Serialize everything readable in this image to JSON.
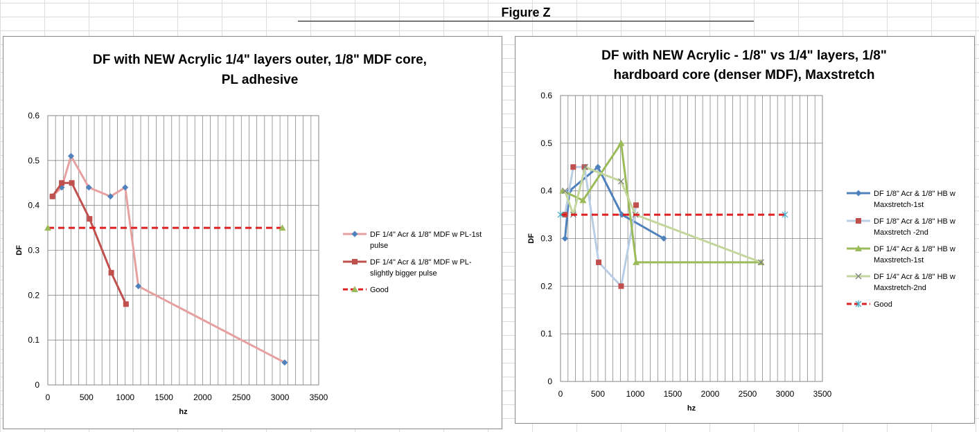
{
  "figure_title": "Figure Z",
  "colors": {
    "blue": "#4f81bd",
    "red": "#c0504d",
    "green": "#9bbb59",
    "pink": "#e6a0a0",
    "darkred": "#c0504d",
    "lightblue": "#b9cde5",
    "lightgreen": "#c3d69b",
    "good": "#e02020",
    "grid": "#868686"
  },
  "chart_data": [
    {
      "type": "scatter",
      "title": "DF with NEW Acrylic  1/4\" layers outer, 1/8\" MDF core, PL adhesive",
      "title_lines": [
        "DF with NEW Acrylic  1/4\" layers outer, 1/8\" MDF core,",
        "PL adhesive"
      ],
      "xlabel": "hz",
      "ylabel": "DF",
      "xlim": [
        0,
        3500
      ],
      "ylim": [
        0,
        0.6
      ],
      "x_ticks": [
        0,
        500,
        1000,
        1500,
        2000,
        2500,
        3000,
        3500
      ],
      "y_ticks": [
        0,
        0.1,
        0.2,
        0.3,
        0.4,
        0.5,
        0.6
      ],
      "y_tick_labels": [
        "0",
        "0.1",
        "0.2",
        "0.3",
        "0.4",
        "0.5",
        "0.6"
      ],
      "grid": true,
      "legend": "right",
      "series": [
        {
          "name": "DF 1/4\" Acr & 1/8\" MDF w PL-1st pulse",
          "legend_lines": [
            "DF 1/4\" Acr & 1/8\" MDF w PL-1st",
            "pulse"
          ],
          "line_color": "pink",
          "marker": "diamond",
          "marker_color": "blue",
          "dashed": false,
          "points": [
            [
              60,
              0.42
            ],
            [
              180,
              0.44
            ],
            [
              300,
              0.51
            ],
            [
              530,
              0.44
            ],
            [
              810,
              0.42
            ],
            [
              1000,
              0.44
            ],
            [
              1170,
              0.22
            ],
            [
              3060,
              0.05
            ]
          ]
        },
        {
          "name": "DF 1/4\" Acr & 1/8\" MDF w PL-slightly bigger pulse",
          "legend_lines": [
            "DF 1/4\" Acr & 1/8\" MDF w PL-",
            "slightly bigger pulse"
          ],
          "line_color": "darkred",
          "marker": "square",
          "marker_color": "red",
          "dashed": false,
          "points": [
            [
              60,
              0.42
            ],
            [
              180,
              0.45
            ],
            [
              310,
              0.45
            ],
            [
              540,
              0.37
            ],
            [
              820,
              0.25
            ],
            [
              1010,
              0.18
            ]
          ]
        },
        {
          "name": "Good",
          "legend_lines": [
            "Good"
          ],
          "line_color": "good",
          "marker": "triangle",
          "marker_color": "green",
          "dashed": true,
          "points": [
            [
              0,
              0.35
            ],
            [
              3030,
              0.35
            ]
          ]
        }
      ]
    },
    {
      "type": "scatter",
      "title": "DF with NEW Acrylic - 1/8\" vs 1/4\" layers, 1/8\" hardboard core (denser MDF), Maxstretch",
      "title_lines": [
        "DF with NEW Acrylic - 1/8\" vs 1/4\" layers, 1/8\"",
        "hardboard core (denser MDF), Maxstretch"
      ],
      "xlabel": "hz",
      "ylabel": "DF",
      "xlim": [
        0,
        3500
      ],
      "ylim": [
        0,
        0.6
      ],
      "x_ticks": [
        0,
        500,
        1000,
        1500,
        2000,
        2500,
        3000,
        3500
      ],
      "y_ticks": [
        0,
        0.1,
        0.2,
        0.3,
        0.4,
        0.5,
        0.6
      ],
      "y_tick_labels": [
        "0",
        "0.1",
        "0.2",
        "0.3",
        "0.4",
        "0.5",
        "0.6"
      ],
      "grid": true,
      "legend": "right",
      "series": [
        {
          "name": "DF 1/8\" Acr & 1/8\" HB w Maxstretch-1st",
          "legend_lines": [
            "DF 1/8\" Acr & 1/8\" HB w",
            "Maxstretch-1st"
          ],
          "line_color": "blue",
          "marker": "diamond",
          "marker_color": "blue",
          "dashed": false,
          "points": [
            [
              60,
              0.3
            ],
            [
              120,
              0.4
            ],
            [
              500,
              0.45
            ],
            [
              820,
              0.35
            ],
            [
              1380,
              0.3
            ]
          ]
        },
        {
          "name": "DF 1/8\" Acr & 1/8\" HB w Maxstretch -2nd",
          "legend_lines": [
            "DF 1/8\" Acr & 1/8\" HB w",
            "Maxstretch -2nd"
          ],
          "line_color": "lightblue",
          "marker": "square",
          "marker_color": "red",
          "dashed": false,
          "points": [
            [
              60,
              0.35
            ],
            [
              170,
              0.45
            ],
            [
              320,
              0.45
            ],
            [
              510,
              0.25
            ],
            [
              810,
              0.2
            ],
            [
              1010,
              0.37
            ]
          ]
        },
        {
          "name": "DF 1/4\" Acr & 1/8\" HB w Maxstretch-1st",
          "legend_lines": [
            "DF 1/4\" Acr & 1/8\" HB w",
            "Maxstretch-1st"
          ],
          "line_color": "green",
          "marker": "triangle",
          "marker_color": "green",
          "dashed": false,
          "points": [
            [
              30,
              0.4
            ],
            [
              300,
              0.38
            ],
            [
              810,
              0.5
            ],
            [
              1010,
              0.25
            ],
            [
              2680,
              0.25
            ]
          ]
        },
        {
          "name": "DF 1/4\" Acr & 1/8\" HB w Maxstretch-2nd",
          "legend_lines": [
            "DF 1/4\" Acr & 1/8\" HB w",
            "Maxstretch-2nd"
          ],
          "line_color": "lightgreen",
          "marker": "x",
          "marker_color": "gray",
          "dashed": false,
          "points": [
            [
              60,
              0.4
            ],
            [
              170,
              0.35
            ],
            [
              330,
              0.45
            ],
            [
              810,
              0.42
            ],
            [
              1000,
              0.35
            ],
            [
              2680,
              0.25
            ]
          ]
        },
        {
          "name": "Good",
          "legend_lines": [
            "Good"
          ],
          "line_color": "good",
          "marker": "asterisk",
          "marker_color": "lightblue",
          "dashed": true,
          "points": [
            [
              0,
              0.35
            ],
            [
              3000,
              0.35
            ]
          ]
        }
      ]
    }
  ]
}
